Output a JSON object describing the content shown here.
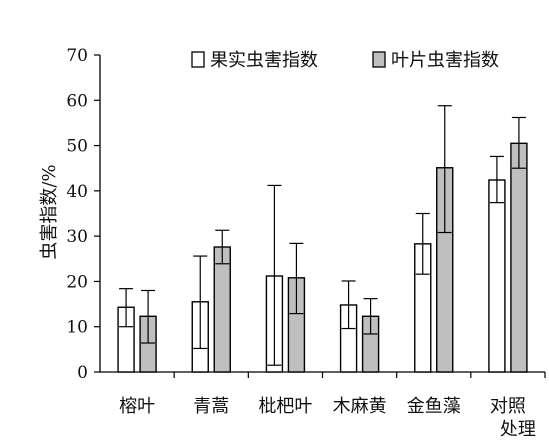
{
  "chart_data": {
    "type": "bar",
    "title": "",
    "xlabel": "",
    "ylabel": "虫害指数/%",
    "ylim": [
      0,
      70
    ],
    "yticks": [
      "0",
      "10",
      "20",
      "30",
      "40",
      "50",
      "60",
      "70"
    ],
    "grid": false,
    "legend_position": "top",
    "error_bars": true,
    "categories": [
      "榕叶",
      "青蒿",
      "枇杷叶",
      "木麻黄",
      "金鱼藻",
      "对照\n处理"
    ],
    "series": [
      {
        "name": "果实虫害指数",
        "fill": "#ffffff",
        "values": [
          14.3,
          15.5,
          21.2,
          14.8,
          28.3,
          42.4
        ],
        "err_low": [
          10.0,
          5.2,
          1.5,
          9.6,
          21.6,
          37.4
        ],
        "err_high": [
          18.4,
          25.6,
          41.2,
          20.1,
          35.0,
          47.6
        ]
      },
      {
        "name": "叶片虫害指数",
        "fill": "#bfbfbf",
        "values": [
          12.3,
          27.6,
          20.8,
          12.3,
          45.1,
          50.5
        ],
        "err_low": [
          6.4,
          23.9,
          12.9,
          8.4,
          30.8,
          45.0
        ],
        "err_high": [
          18.0,
          31.3,
          28.4,
          16.2,
          58.8,
          56.2
        ]
      }
    ]
  }
}
